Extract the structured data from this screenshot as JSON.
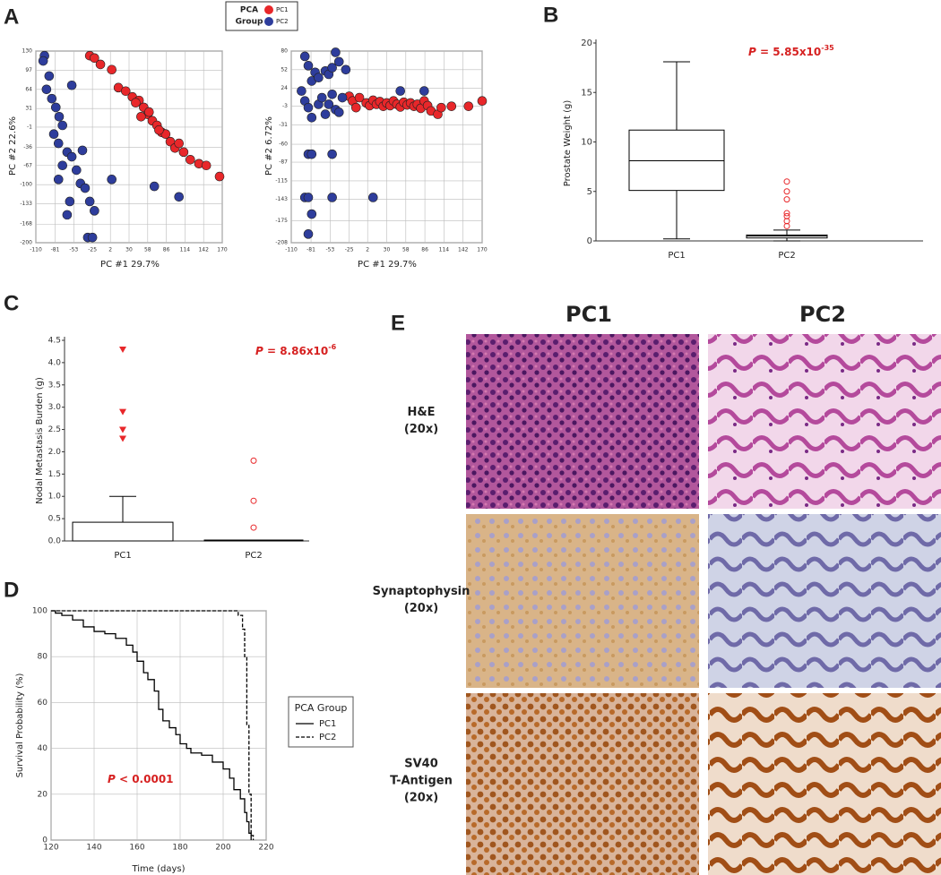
{
  "panel_letters": [
    "A",
    "B",
    "C",
    "D",
    "E"
  ],
  "chart_data": [
    {
      "type": "scatter",
      "x_label": "PC #1 29.7%",
      "y_label": "PC #2 22.6%",
      "legend_title": [
        "PCA",
        "Group"
      ],
      "xlim": [
        -110,
        170
      ],
      "xticks": [
        -110,
        -81,
        -53,
        -25,
        2,
        30,
        58,
        86,
        114,
        142,
        170
      ],
      "ylim": [
        -200,
        130
      ],
      "yticks": [
        -200,
        -168,
        -133,
        -100,
        -67,
        -36,
        -1,
        31,
        64,
        97,
        130
      ],
      "grid": true,
      "series": [
        {
          "name": "PC1",
          "color": "#e8272a",
          "x": [
            -29,
            -22,
            -13,
            4,
            14,
            25,
            35,
            45,
            52,
            58,
            65,
            72,
            79,
            85,
            92,
            99,
            105,
            112,
            122,
            135,
            146,
            166,
            40,
            48,
            60,
            75
          ],
          "values": [
            122,
            118,
            107,
            98,
            67,
            61,
            51,
            45,
            33,
            21,
            10,
            2,
            -10,
            -13,
            -26,
            -37,
            -29,
            -44,
            -57,
            -64,
            -67,
            -86,
            41,
            17,
            25,
            -6
          ]
        },
        {
          "name": "PC2",
          "color": "#2e3d9c",
          "x": [
            -97,
            -99,
            -90,
            -94,
            -86,
            -80,
            -75,
            -70,
            -83,
            -76,
            -63,
            -56,
            -70,
            -76,
            -43,
            -36,
            -29,
            -22,
            -63,
            -59,
            -32,
            -25,
            -56,
            4,
            68,
            105,
            -40,
            -49
          ],
          "values": [
            122,
            113,
            87,
            64,
            48,
            33,
            17,
            2,
            -13,
            -29,
            -44,
            -52,
            -67,
            -91,
            -98,
            -106,
            -129,
            -145,
            -152,
            -129,
            -191,
            -191,
            71,
            -91,
            -103,
            -121,
            -41,
            -75
          ]
        }
      ]
    },
    {
      "type": "scatter",
      "x_label": "PC #1 29.7%",
      "y_label": "PC #2 6.72%",
      "xlim": [
        -110,
        170
      ],
      "xticks": [
        -110,
        -81,
        -53,
        -25,
        2,
        30,
        58,
        86,
        114,
        142,
        170
      ],
      "ylim": [
        -208,
        80
      ],
      "yticks": [
        -208,
        -175,
        -143,
        -115,
        -87,
        -60,
        -31,
        -3,
        24,
        52,
        80
      ],
      "grid": true,
      "series": [
        {
          "name": "PC1",
          "color": "#e8272a",
          "x": [
            -25,
            -20,
            -15,
            -10,
            0,
            5,
            10,
            15,
            20,
            25,
            30,
            35,
            40,
            45,
            50,
            55,
            60,
            65,
            70,
            75,
            80,
            85,
            90,
            95,
            105,
            110,
            125,
            150,
            170
          ],
          "values": [
            12,
            5,
            -5,
            10,
            2,
            -2,
            6,
            0,
            4,
            -3,
            2,
            -2,
            5,
            0,
            -4,
            3,
            -1,
            2,
            -3,
            0,
            -6,
            5,
            -2,
            -10,
            -15,
            -5,
            -3,
            -3,
            5
          ]
        },
        {
          "name": "PC2",
          "color": "#2e3d9c",
          "x": [
            -90,
            -85,
            -80,
            -75,
            -70,
            -60,
            -55,
            -50,
            -40,
            -45,
            -30,
            -95,
            -90,
            -85,
            -80,
            -70,
            -65,
            -60,
            -55,
            -50,
            -45,
            -40,
            -35,
            -85,
            -80,
            -50,
            -90,
            -85,
            -50,
            -80,
            -85,
            10,
            50,
            85
          ],
          "values": [
            72,
            58,
            35,
            48,
            40,
            50,
            45,
            55,
            64,
            78,
            52,
            20,
            5,
            -5,
            -20,
            0,
            10,
            -15,
            0,
            15,
            -8,
            -12,
            10,
            -75,
            -75,
            -75,
            -140,
            -140,
            -140,
            -165,
            -195,
            -140,
            20,
            20
          ]
        }
      ]
    },
    {
      "type": "box",
      "y_label": "Prostate Weight (g)",
      "categories": [
        "PC1",
        "PC2"
      ],
      "ylim": [
        0,
        20
      ],
      "yticks": [
        0,
        5,
        10,
        15,
        20
      ],
      "annotation": {
        "italic": "P",
        "text": " = 5.85x10",
        "superscript": "-35"
      },
      "boxes": [
        {
          "min": 0.2,
          "q1": 5.1,
          "median": 8.1,
          "q3": 11.2,
          "max": 18.1,
          "outliers": []
        },
        {
          "min": 0,
          "q1": 0.3,
          "median": 0.5,
          "q3": 0.6,
          "max": 1.1,
          "outliers": [
            1.5,
            2.0,
            2.5,
            2.8,
            4.2,
            5.0,
            6.0
          ],
          "outlier_marker": "circle",
          "outlier_color": "#e8272a"
        }
      ]
    },
    {
      "type": "box",
      "y_label": "Nodal Metastasis Burden (g)",
      "categories": [
        "PC1",
        "PC2"
      ],
      "ylim": [
        0,
        4.5
      ],
      "yticks": [
        {
          "value": 0,
          "label": "0.0"
        },
        0.5,
        {
          "value": 1,
          "label": "1.0"
        },
        1.5,
        {
          "value": 2,
          "label": "2.0"
        },
        2.5,
        {
          "value": 3,
          "label": "3.0"
        },
        3.5,
        {
          "value": 4,
          "label": "4.0"
        },
        4.5
      ],
      "annotation": {
        "italic": "P",
        "text": " = 8.86x10",
        "superscript": "-6"
      },
      "boxes": [
        {
          "min": 0,
          "q1": 0,
          "median": 0,
          "q3": 0.42,
          "max": 1.0,
          "outliers": [
            2.3,
            2.5,
            2.9,
            4.3
          ],
          "outlier_marker": "triangle",
          "outlier_color": "#e8272a"
        },
        {
          "min": 0,
          "q1": 0,
          "median": 0.01,
          "q3": 0.02,
          "max": 0.02,
          "outliers": [
            0.3,
            0.9,
            1.8
          ],
          "outlier_marker": "circle",
          "outlier_color": "#e8272a"
        }
      ]
    },
    {
      "type": "line",
      "step": true,
      "x_label": "Time (days)",
      "y_label": "Survival Probability (%)",
      "legend_title": "PCA Group",
      "xlim": [
        120,
        220
      ],
      "xticks": [
        120,
        140,
        160,
        180,
        200,
        220
      ],
      "ylim": [
        0,
        100
      ],
      "yticks": [
        0,
        20,
        40,
        60,
        80,
        100
      ],
      "grid": true,
      "annotation": {
        "italic": "P",
        "text": " < 0.0001"
      },
      "series": [
        {
          "name": "PC1",
          "color": "#000000",
          "dash": false,
          "x": [
            120,
            122,
            125,
            130,
            135,
            140,
            145,
            150,
            155,
            158,
            160,
            163,
            165,
            168,
            170,
            172,
            175,
            178,
            180,
            183,
            185,
            190,
            195,
            200,
            203,
            205,
            208,
            210,
            211,
            212,
            213
          ],
          "values": [
            100,
            99,
            98,
            96,
            93,
            91,
            90,
            88,
            85,
            82,
            78,
            73,
            70,
            65,
            57,
            52,
            49,
            46,
            42,
            40,
            38,
            37,
            34,
            31,
            27,
            22,
            18,
            12,
            8,
            3,
            0
          ]
        },
        {
          "name": "PC2",
          "color": "#000000",
          "dash": true,
          "x": [
            120,
            205,
            207,
            209,
            210,
            211,
            212,
            213,
            214
          ],
          "values": [
            100,
            100,
            98,
            92,
            80,
            50,
            20,
            2,
            0
          ]
        }
      ]
    }
  ],
  "histology": {
    "columns": [
      "PC1",
      "PC2"
    ],
    "rows": [
      [
        "H&E",
        "(20x)"
      ],
      [
        "Synaptophysin",
        "(20x)"
      ],
      [
        "SV40",
        "T-Antigen",
        "(20x)"
      ]
    ]
  }
}
